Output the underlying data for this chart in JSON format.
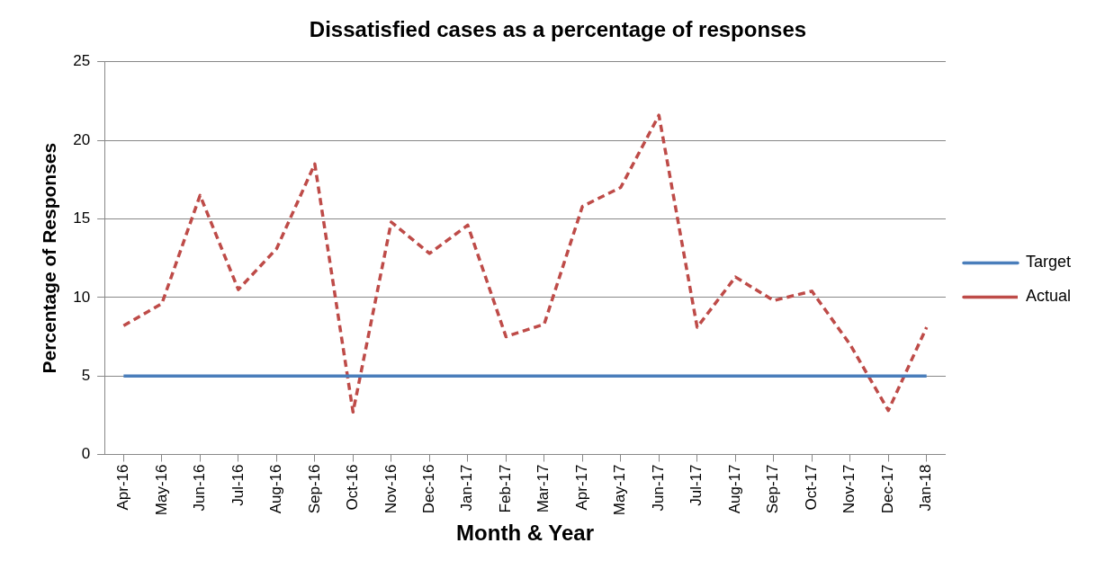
{
  "chart_data": {
    "type": "line",
    "title": "Dissatisfied cases as a percentage of responses",
    "xlabel": "Month & Year",
    "ylabel": "Percentage of Responses",
    "categories": [
      "Apr-16",
      "May-16",
      "Jun-16",
      "Jul-16",
      "Aug-16",
      "Sep-16",
      "Oct-16",
      "Nov-16",
      "Dec-16",
      "Jan-17",
      "Feb-17",
      "Mar-17",
      "Apr-17",
      "May-17",
      "Jun-17",
      "Jul-17",
      "Aug-17",
      "Sep-17",
      "Oct-17",
      "Nov-17",
      "Dec-17",
      "Jan-18"
    ],
    "series": [
      {
        "name": "Target",
        "color": "#4a7ebb",
        "line_style": "solid",
        "values": [
          5,
          5,
          5,
          5,
          5,
          5,
          5,
          5,
          5,
          5,
          5,
          5,
          5,
          5,
          5,
          5,
          5,
          5,
          5,
          5,
          5,
          5
        ]
      },
      {
        "name": "Actual",
        "color": "#be4b48",
        "line_style": "dashed",
        "values": [
          8.2,
          9.6,
          16.5,
          10.5,
          13.1,
          18.5,
          2.7,
          14.8,
          12.8,
          14.6,
          7.5,
          8.3,
          15.8,
          17.0,
          21.6,
          8.1,
          11.3,
          9.8,
          10.4,
          7.0,
          2.8,
          8.1
        ]
      }
    ],
    "ylim": [
      0,
      25
    ],
    "yticks": [
      0,
      5,
      10,
      15,
      20,
      25
    ],
    "grid": "y",
    "legend": "right",
    "marker": "none"
  }
}
